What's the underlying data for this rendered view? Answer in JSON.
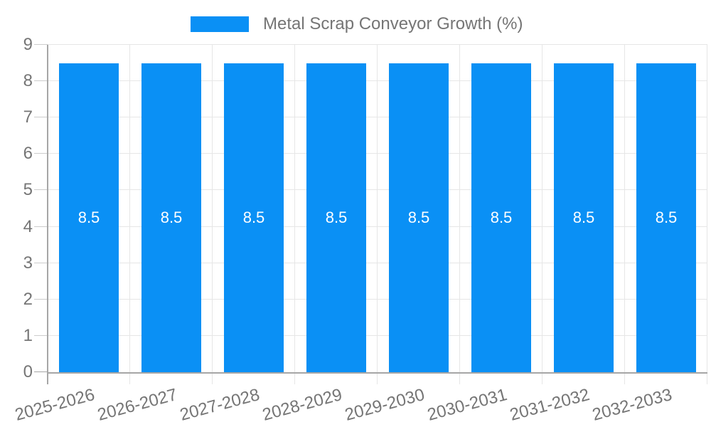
{
  "chart_data": {
    "type": "bar",
    "title": "Metal Scrap Conveyor Growth (%)",
    "categories": [
      "2025-2026",
      "2026-2027",
      "2027-2028",
      "2028-2029",
      "2029-2030",
      "2030-2031",
      "2031-2032",
      "2032-2033"
    ],
    "values": [
      8.5,
      8.5,
      8.5,
      8.5,
      8.5,
      8.5,
      8.5,
      8.5
    ],
    "value_labels": [
      "8.5",
      "8.5",
      "8.5",
      "8.5",
      "8.5",
      "8.5",
      "8.5",
      "8.5"
    ],
    "xlabel": "",
    "ylabel": "",
    "ylim": [
      0,
      9
    ],
    "ytick_step": 1,
    "ytick_labels": [
      "0",
      "1",
      "2",
      "3",
      "4",
      "5",
      "6",
      "7",
      "8",
      "9"
    ],
    "grid": true,
    "legend_position": "top",
    "x_label_rotation_deg": -15,
    "colors": {
      "bar": "#0a90f5",
      "axis": "#a6a6a6",
      "grid": "#e6e6e6",
      "tick": "#cccccc",
      "text": "#757575",
      "value_label": "#ffffff",
      "background": "#ffffff"
    }
  }
}
